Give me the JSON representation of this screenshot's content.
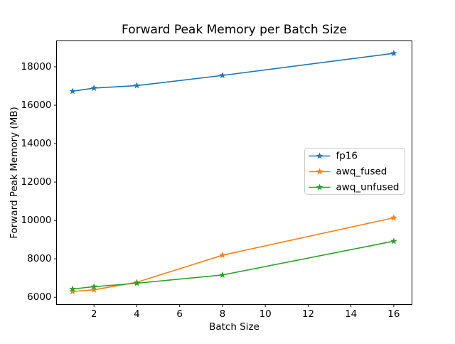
{
  "chart_data": {
    "type": "line",
    "title": "Forward Peak Memory per Batch Size",
    "xlabel": "Batch Size",
    "ylabel": "Forward Peak Memory (MB)",
    "x": [
      1,
      2,
      4,
      8,
      16
    ],
    "series": [
      {
        "name": "fp16",
        "color": "#1f77b4",
        "values": [
          16730,
          16890,
          17020,
          17550,
          18700
        ]
      },
      {
        "name": "awq_fused",
        "color": "#ff7f0e",
        "values": [
          6300,
          6390,
          6780,
          8190,
          10140
        ]
      },
      {
        "name": "awq_unfused",
        "color": "#2ca02c",
        "values": [
          6430,
          6550,
          6730,
          7160,
          8920
        ]
      }
    ],
    "xticks": [
      2,
      4,
      6,
      8,
      10,
      12,
      14,
      16
    ],
    "yticks": [
      6000,
      8000,
      10000,
      12000,
      14000,
      16000,
      18000
    ],
    "xlim": [
      0.25,
      16.85
    ],
    "ylim": [
      5620,
      19350
    ],
    "marker": "star",
    "grid": false,
    "legend_position": "center-right",
    "axis_color": "#000000",
    "legend_border_color": "#cccccc",
    "background": "#ffffff"
  }
}
